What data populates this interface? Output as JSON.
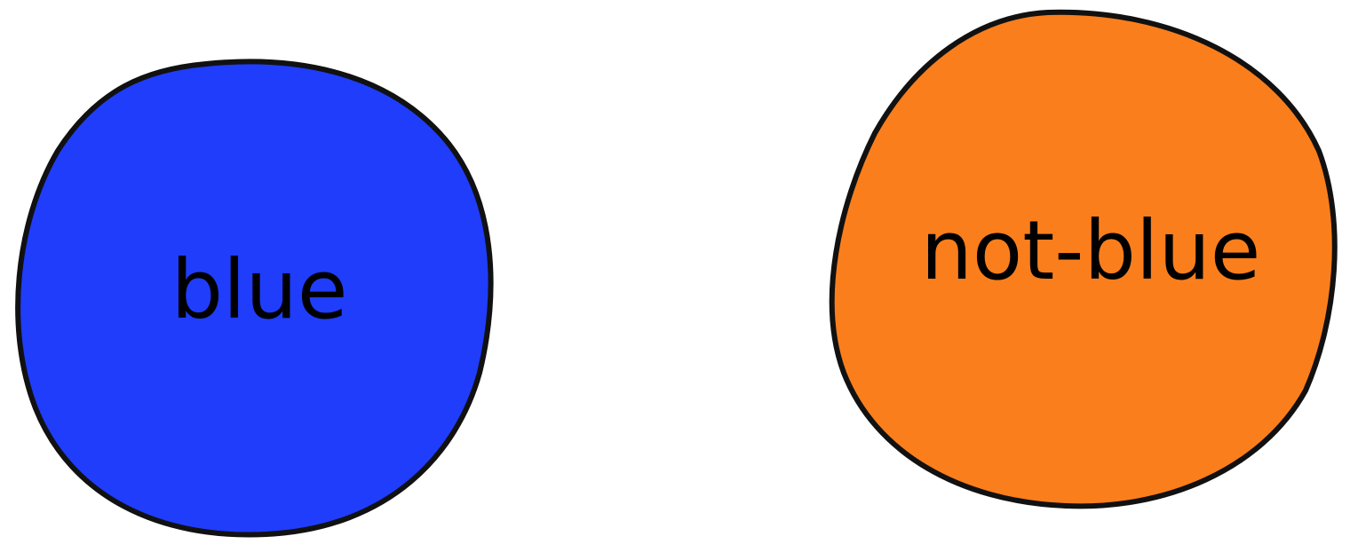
{
  "circles": {
    "blue": {
      "label": "blue",
      "fill": "#1f3dfb",
      "outline": "#111111"
    },
    "not_blue": {
      "label": "not-blue",
      "fill": "#fb7e1c",
      "outline": "#111111"
    }
  },
  "background": "#ffffff"
}
